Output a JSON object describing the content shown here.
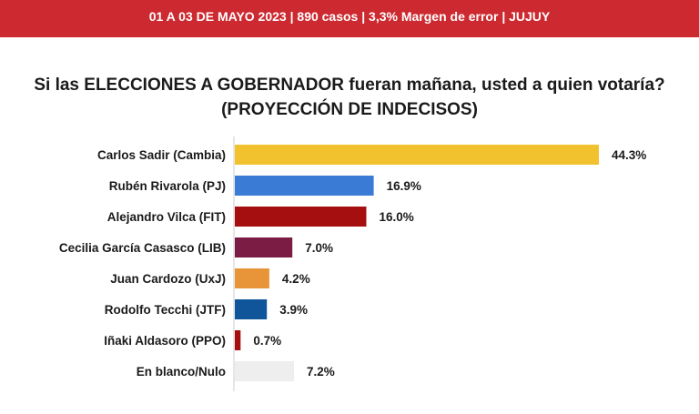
{
  "header": {
    "text": "01 A 03 DE MAYO 2023 | 890 casos  |  3,3% Margen de error  | JUJUY",
    "bar_color": "#cc2a30"
  },
  "chart_data": {
    "type": "bar",
    "orientation": "horizontal",
    "title": "Si las ELECCIONES A GOBERNADOR fueran mañana, usted a quien votaría?",
    "subtitle": "(PROYECCIÓN DE INDECISOS)",
    "categories": [
      "Carlos Sadir (Cambia)",
      "Rubén Rivarola (PJ)",
      "Alejandro Vilca (FIT)",
      "Cecilia García Casasco (LIB)",
      "Juan Cardozo (UxJ)",
      "Rodolfo Tecchi (JTF)",
      "Iñaki Aldasoro (PPO)",
      "En blanco/Nulo"
    ],
    "values": [
      44.3,
      16.9,
      16.0,
      7.0,
      4.2,
      3.9,
      0.7,
      7.2
    ],
    "value_labels": [
      "44.3%",
      "16.9%",
      "16.0%",
      "7.0%",
      "4.2%",
      "3.9%",
      "0.7%",
      "7.2%"
    ],
    "colors": [
      "#f2c12e",
      "#3a7bd5",
      "#a50f0f",
      "#7b1c45",
      "#e8953a",
      "#10559a",
      "#a50f0f",
      "#eeeeee"
    ],
    "xlim": [
      0,
      50
    ],
    "grid": false,
    "legend": "none"
  }
}
